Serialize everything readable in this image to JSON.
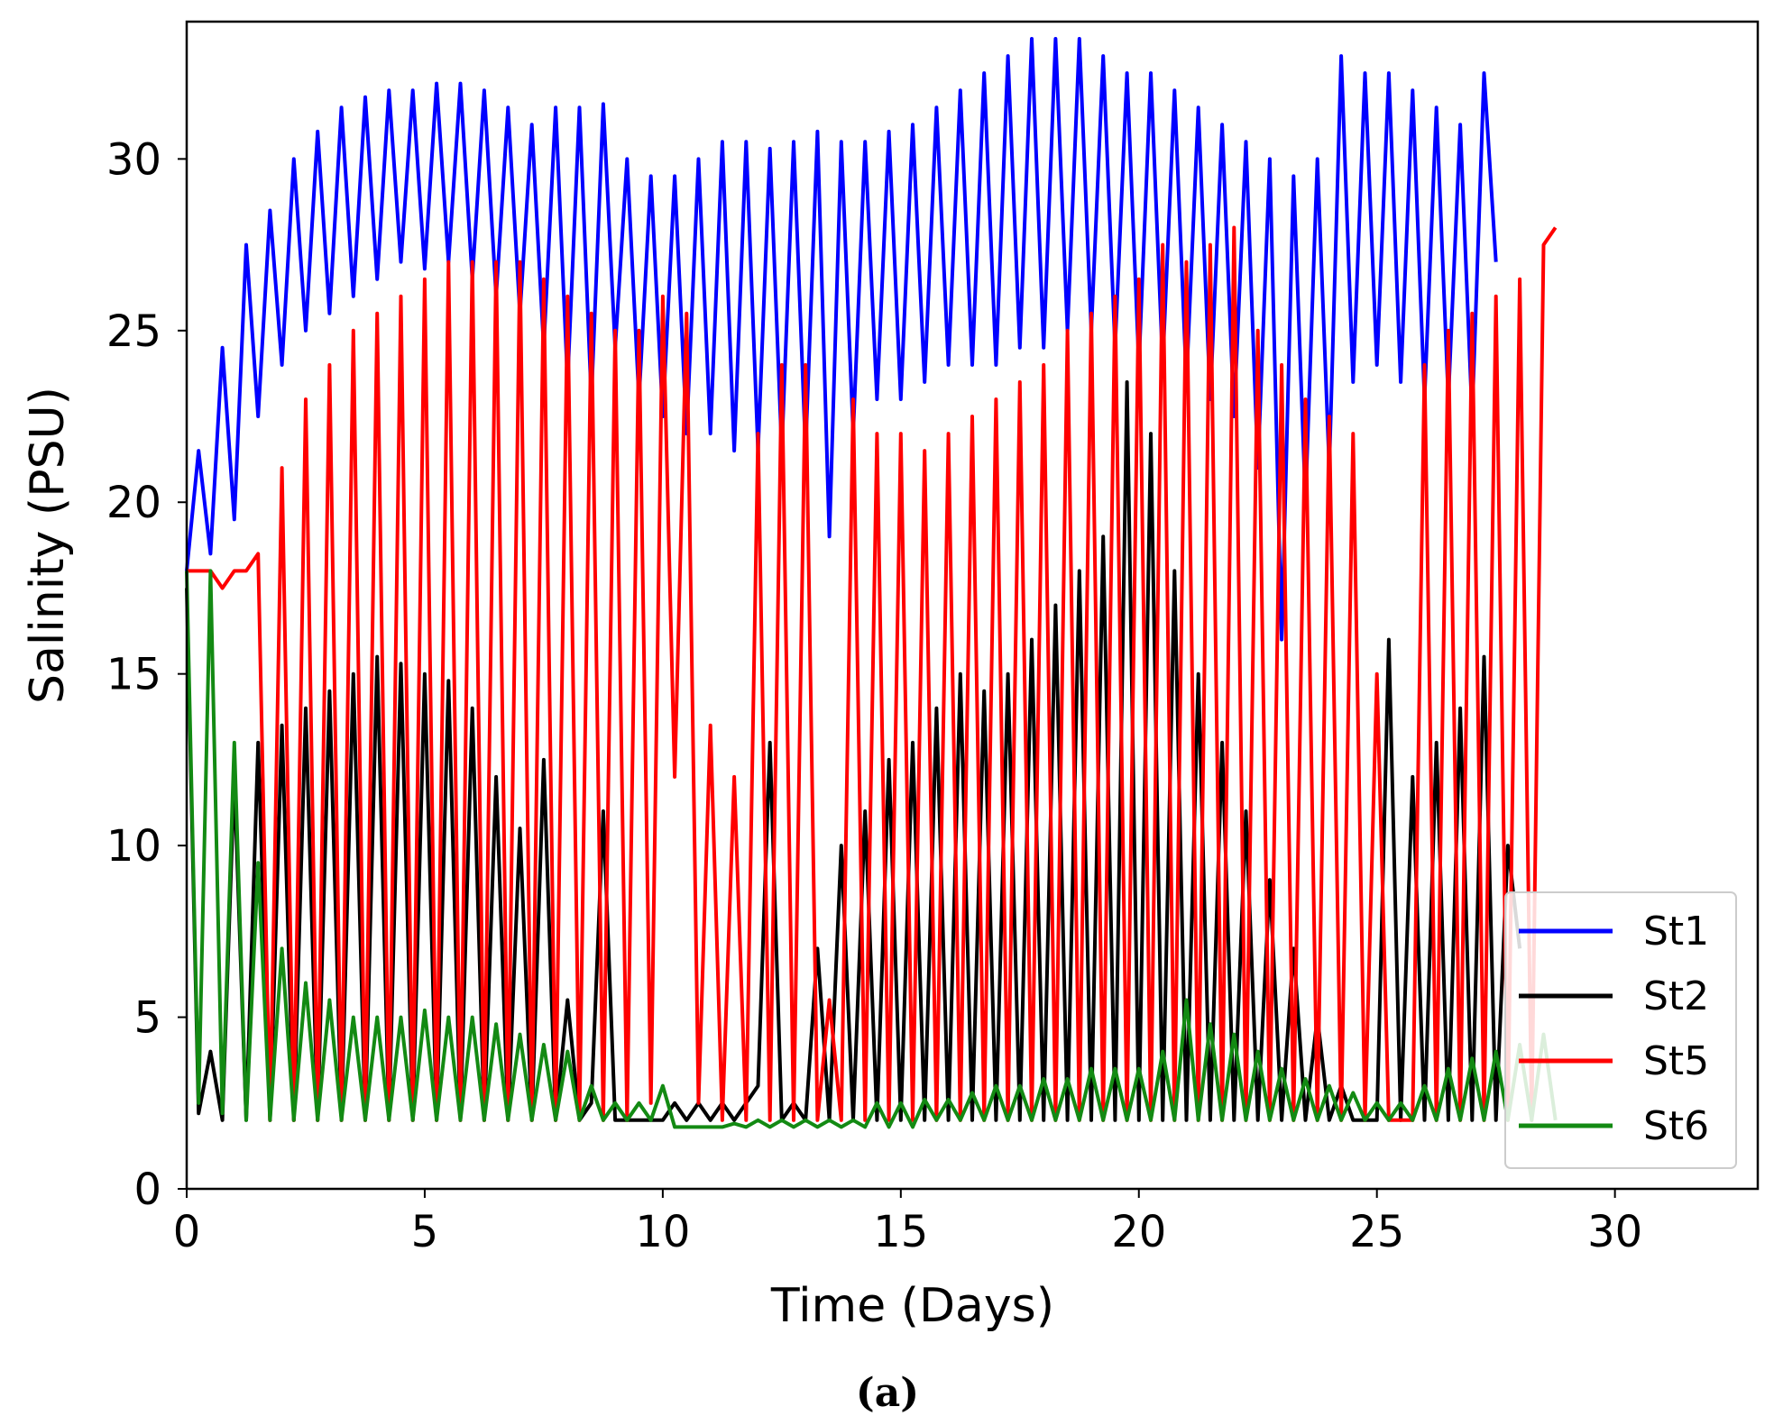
{
  "chart_data": {
    "type": "line",
    "title": "",
    "xlabel": "Time (Days)",
    "ylabel": "Salinity (PSU)",
    "caption": "(a)",
    "xlim": [
      0,
      33
    ],
    "ylim": [
      0,
      34
    ],
    "xticks": [
      0,
      5,
      10,
      15,
      20,
      25,
      30
    ],
    "yticks": [
      0,
      5,
      10,
      15,
      20,
      25,
      30
    ],
    "legend_position": "bottom-right",
    "grid": false,
    "sampling": {
      "start_day": 0,
      "step_days": 0.25,
      "note": "values sampled from the plotted curves: alternating tidal peaks and troughs (≈2 cycles per day)"
    },
    "series": [
      {
        "name": "St1",
        "color": "#0000ff",
        "values": [
          18,
          21.5,
          18.5,
          24.5,
          19.5,
          27.5,
          22.5,
          28.5,
          24,
          30,
          25,
          30.8,
          25.5,
          31.5,
          26,
          31.8,
          26.5,
          32,
          27,
          32,
          26.8,
          32.2,
          27,
          32.2,
          26.5,
          32,
          26,
          31.5,
          25.5,
          31,
          24.5,
          31.5,
          23.5,
          31.5,
          23,
          31.6,
          24.5,
          30,
          23,
          29.5,
          22.5,
          29.5,
          22,
          30,
          22,
          30.5,
          21.5,
          30.5,
          21.5,
          30.3,
          21.5,
          30.5,
          21.5,
          30.8,
          19,
          30.5,
          22,
          30.5,
          23,
          30.8,
          23,
          31,
          23.5,
          31.5,
          24,
          32,
          24,
          32.5,
          24,
          33,
          24.5,
          33.5,
          24.5,
          33.5,
          25,
          33.5,
          25,
          33,
          24.5,
          32.5,
          24,
          32.5,
          24,
          32,
          23.5,
          31.5,
          23,
          31,
          22.5,
          30.5,
          21,
          30,
          16,
          29.5,
          20,
          30,
          21,
          33,
          23.5,
          32.5,
          24,
          32.5,
          23.5,
          32,
          23,
          31.5,
          23,
          31,
          22.5,
          32.5,
          27
        ]
      },
      {
        "name": "St2",
        "color": "#000000",
        "values": [
          17.5,
          2.2,
          4,
          2,
          12,
          2,
          13,
          2,
          13.5,
          2,
          14,
          2,
          14.5,
          2,
          15,
          2,
          15.5,
          2,
          15.3,
          2,
          15,
          2,
          14.8,
          2,
          14,
          2,
          12,
          2,
          10.5,
          2,
          12.5,
          2,
          5.5,
          2,
          2.5,
          11,
          2,
          2,
          2,
          2,
          2,
          2.5,
          2,
          2.5,
          2,
          2.5,
          2,
          2.5,
          3,
          13,
          2,
          2.5,
          2,
          7,
          2,
          10,
          2,
          11,
          2,
          12.5,
          2,
          13,
          2,
          14,
          2,
          15,
          2,
          14.5,
          2,
          15,
          2,
          16,
          2,
          17,
          2,
          18,
          2,
          19,
          2,
          23.5,
          2,
          22,
          2,
          18,
          2,
          15,
          2,
          13,
          2,
          11,
          2,
          9,
          2,
          7,
          2,
          5,
          2,
          3,
          2,
          2,
          2,
          16,
          2,
          12,
          2,
          13,
          2,
          14,
          2,
          15.5,
          2,
          10,
          7
        ]
      },
      {
        "name": "St5",
        "color": "#ff0000",
        "values": [
          18,
          18,
          18,
          17.5,
          18,
          18,
          18.5,
          2,
          21,
          2,
          23,
          2,
          24,
          2,
          25,
          2,
          25.5,
          2,
          26,
          2,
          26.5,
          2,
          27,
          2,
          27,
          2,
          27,
          2,
          27,
          2,
          26.5,
          2,
          26,
          2,
          25.5,
          2,
          25,
          2,
          25,
          2.5,
          26,
          12,
          25.5,
          2.5,
          13.5,
          2,
          12,
          2,
          22,
          2,
          24,
          2,
          24,
          2,
          5.5,
          2,
          23,
          2,
          22,
          2,
          22,
          2,
          21.5,
          2,
          22,
          2,
          22.5,
          2,
          23,
          2,
          23.5,
          2,
          24,
          2,
          25,
          2,
          25.5,
          2,
          26,
          2,
          26.5,
          2,
          27.5,
          2,
          27,
          2,
          27.5,
          2,
          28,
          2,
          25,
          2,
          24,
          2,
          23,
          2,
          22.5,
          2,
          22,
          2,
          15,
          2,
          2,
          2,
          24,
          2,
          25,
          2,
          25.5,
          2,
          26,
          2,
          26.5,
          2,
          27.5,
          28
        ]
      },
      {
        "name": "St6",
        "color": "#138a13",
        "values": [
          18,
          2.5,
          18,
          2.2,
          13,
          2,
          9.5,
          2,
          7,
          2,
          6,
          2,
          5.5,
          2,
          5,
          2,
          5,
          2,
          5,
          2,
          5.2,
          2,
          5,
          2,
          5,
          2,
          4.8,
          2,
          4.5,
          2,
          4.2,
          2,
          4,
          2,
          3,
          2,
          2.5,
          2,
          2.5,
          2,
          3,
          1.8,
          1.8,
          1.8,
          1.8,
          1.8,
          1.9,
          1.8,
          2,
          1.8,
          2,
          1.8,
          2,
          1.8,
          2,
          1.8,
          2,
          1.8,
          2.5,
          1.8,
          2.5,
          1.8,
          2.6,
          2,
          2.6,
          2,
          2.8,
          2,
          3,
          2,
          3,
          2,
          3.2,
          2,
          3.2,
          2,
          3.5,
          2,
          3.5,
          2,
          3.5,
          2,
          4,
          2,
          5.5,
          2,
          4.8,
          2,
          4.5,
          2,
          4,
          2,
          3.5,
          2,
          3.2,
          2,
          3,
          2,
          2.8,
          2,
          2.5,
          2,
          2.5,
          2,
          3,
          2,
          3.5,
          2,
          3.8,
          2,
          4,
          2,
          4.2,
          2,
          4.5,
          2
        ]
      }
    ]
  }
}
